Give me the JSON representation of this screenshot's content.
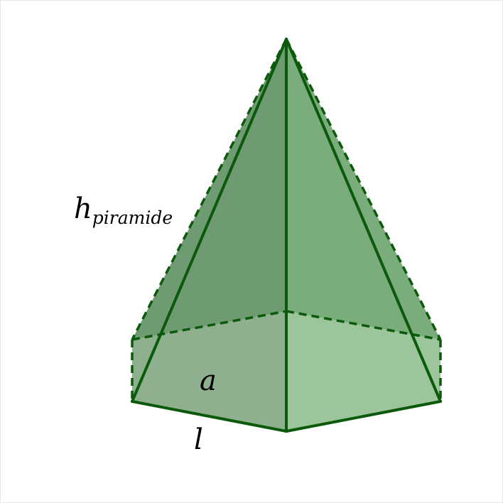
{
  "diagram": {
    "labels": {
      "height_symbol": "h",
      "height_subscript": "piramide",
      "apothem": "a",
      "side": "l"
    },
    "colors": {
      "edge": "#0b5a0b",
      "face_left_back": "#6f9b72",
      "face_right_back": "#7aad7b",
      "face_front_base": "#8fb08f",
      "face_right_base": "#9cc59c"
    }
  }
}
